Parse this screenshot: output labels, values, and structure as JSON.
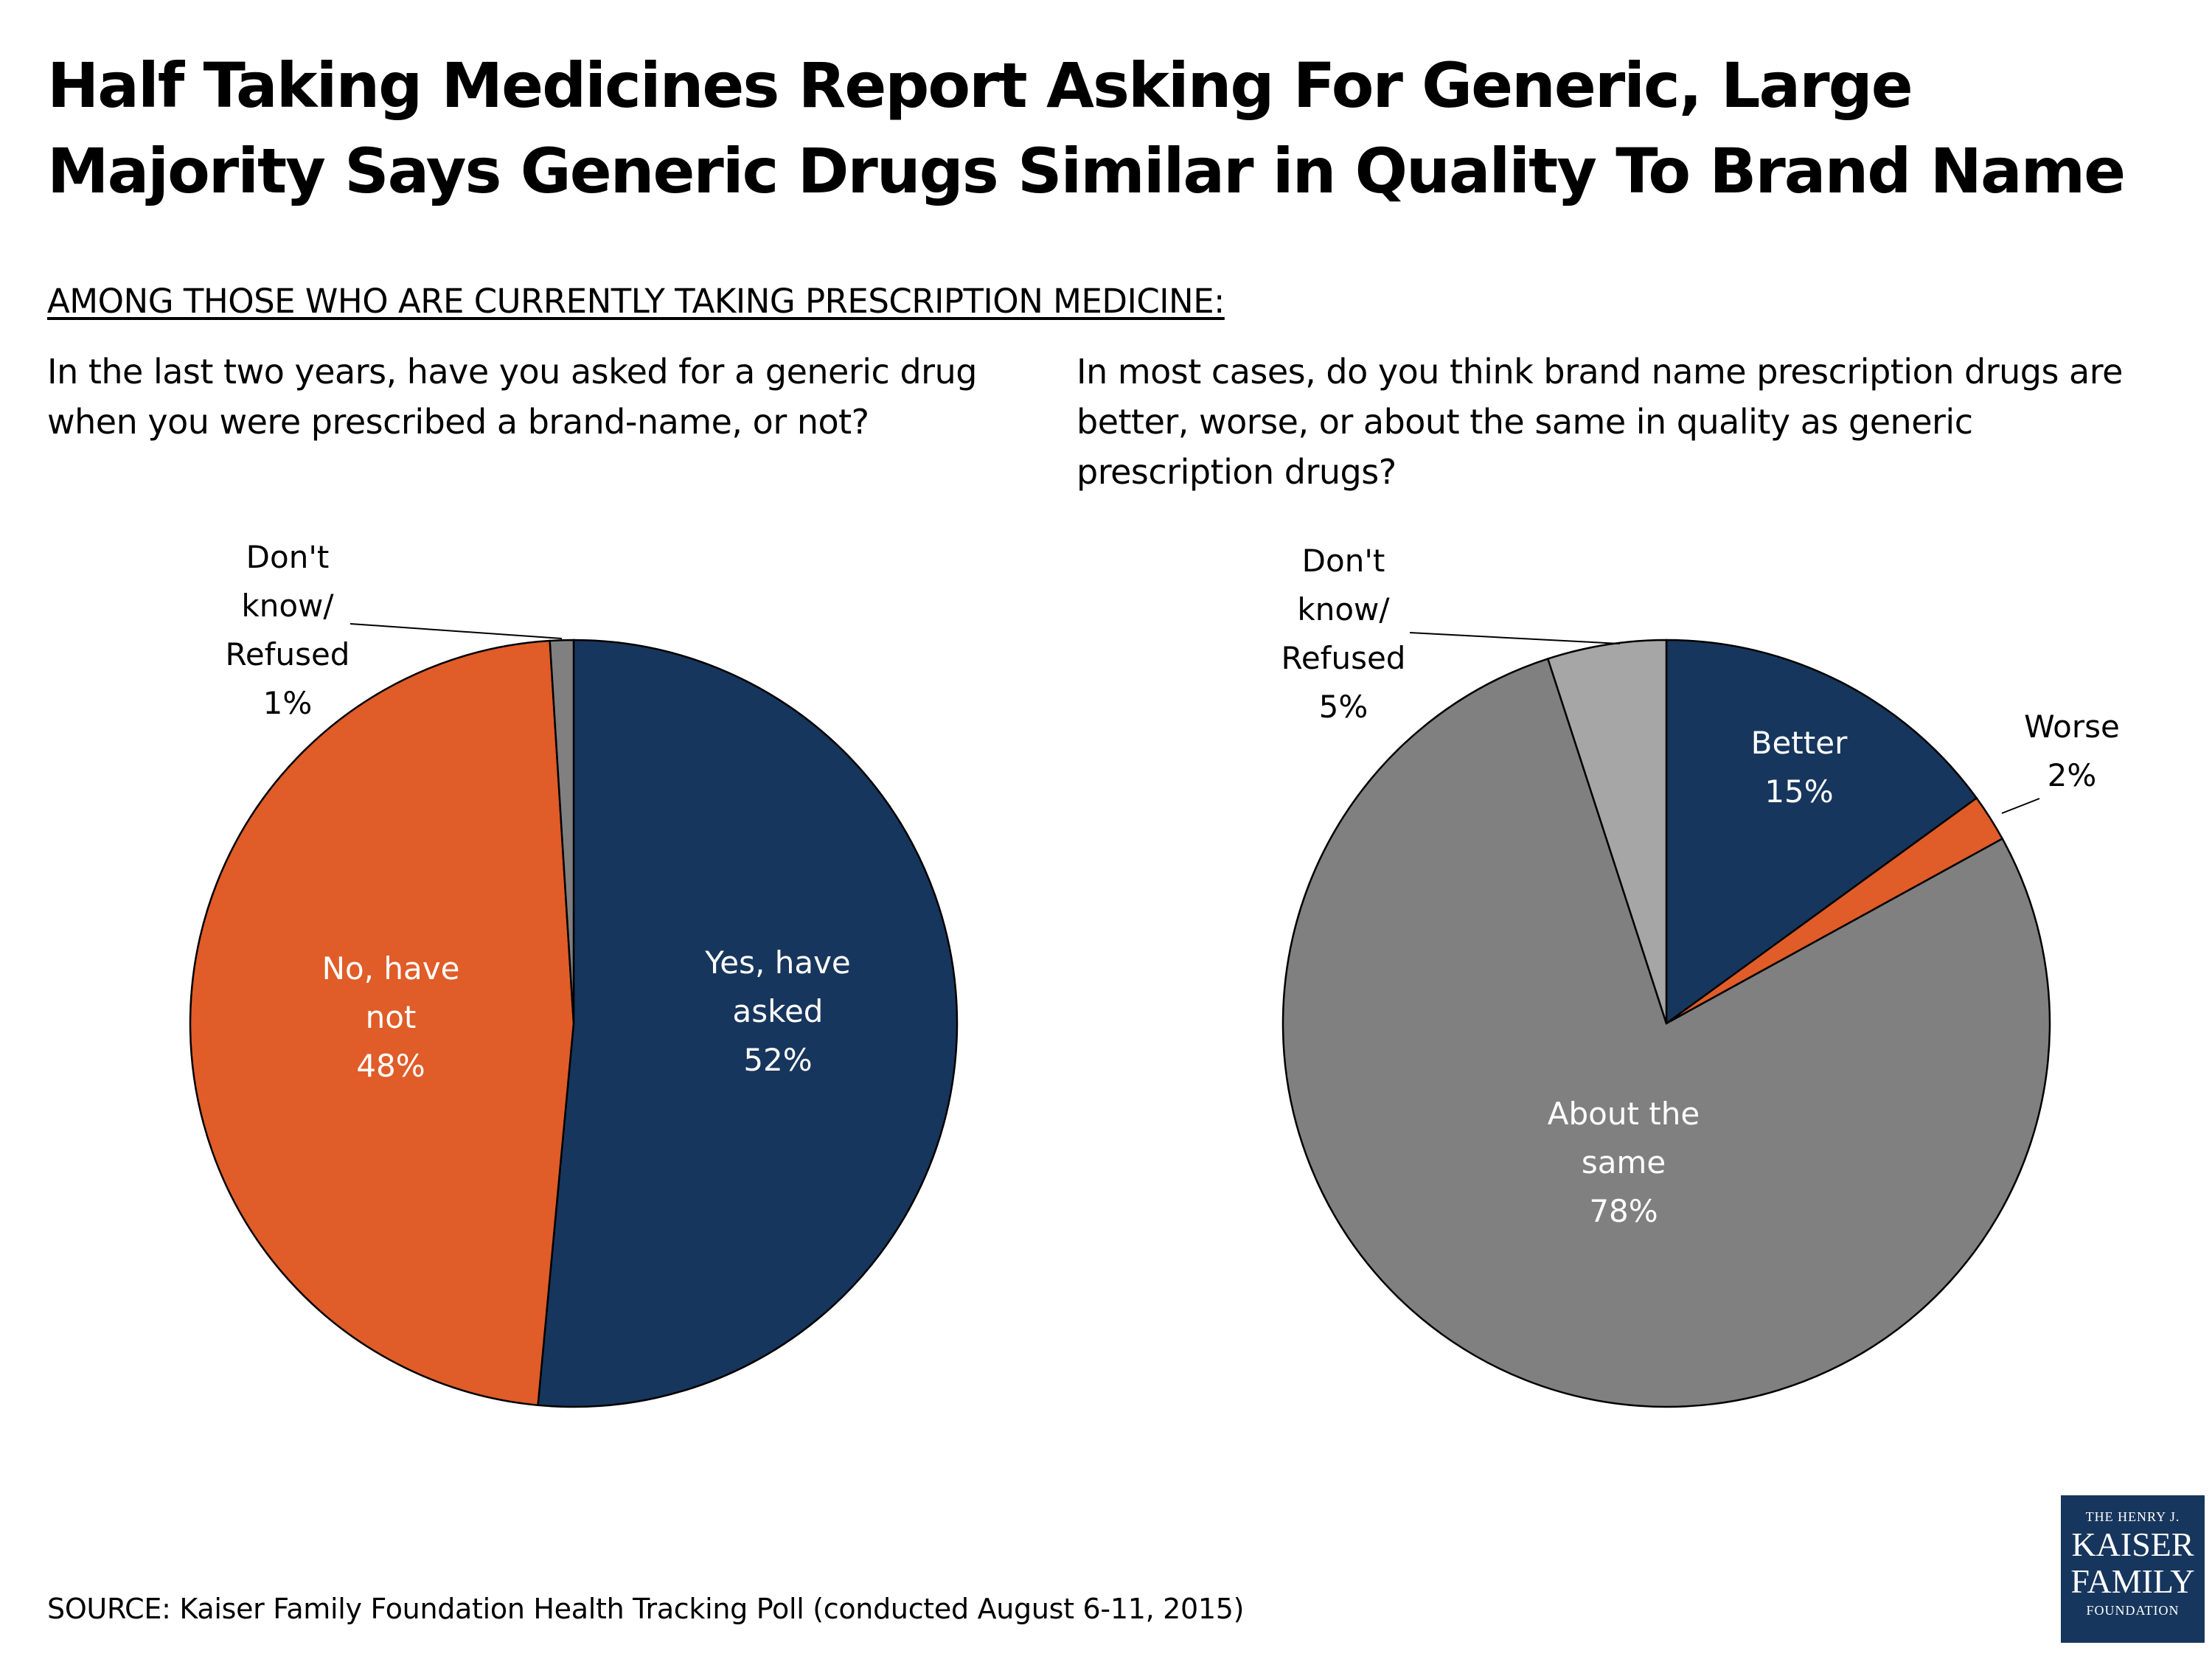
{
  "title": {
    "line1": "Half Taking Medicines Report Asking For Generic, Large",
    "line2": "Majority Says Generic Drugs Similar in Quality To Brand Name"
  },
  "section_label": "AMONG THOSE WHO ARE CURRENTLY TAKING PRESCRIPTION MEDICINE:",
  "questions": {
    "left": {
      "line1": "In the last two years, have you asked for a generic drug",
      "line2": "when you were prescribed a brand-name, or not?"
    },
    "right": {
      "line1": "In most cases, do you think brand name prescription drugs are",
      "line2": "better, worse, or about the same in quality as generic",
      "line3": "prescription drugs?"
    }
  },
  "source": "SOURCE: Kaiser Family Foundation Health Tracking Poll (conducted August 6-11, 2015)",
  "logo": {
    "line1": "THE HENRY J.",
    "line2": "KAISER",
    "line3": "FAMILY",
    "line4": "FOUNDATION"
  },
  "colors": {
    "navy": "#17365d",
    "orange": "#e05c28",
    "dark_gray": "#808080",
    "light_gray": "#a6a6a6",
    "outline": "#000000",
    "label_light": "#ffffff",
    "label_dark": "#000000"
  },
  "chart_data": [
    {
      "type": "pie",
      "start_angle_deg": 0,
      "direction": "clockwise",
      "slices": [
        {
          "label_lines": [
            "Yes, have",
            "asked",
            "52%"
          ],
          "value": 52,
          "color": "#17365d",
          "label_color": "#ffffff",
          "label_placement": "inside"
        },
        {
          "label_lines": [
            "No, have",
            "not",
            "48%"
          ],
          "value": 48,
          "color": "#e05c28",
          "label_color": "#ffffff",
          "label_placement": "inside"
        },
        {
          "label_lines": [
            "Don't",
            "know/",
            "Refused",
            "1%"
          ],
          "value": 1,
          "color": "#808080",
          "label_color": "#000000",
          "label_placement": "outside-leader"
        }
      ]
    },
    {
      "type": "pie",
      "start_angle_deg": 0,
      "direction": "clockwise",
      "slices": [
        {
          "label_lines": [
            "Better",
            "15%"
          ],
          "value": 15,
          "color": "#17365d",
          "label_color": "#ffffff",
          "label_placement": "inside"
        },
        {
          "label_lines": [
            "Worse",
            "2%"
          ],
          "value": 2,
          "color": "#e05c28",
          "label_color": "#000000",
          "label_placement": "outside-leader"
        },
        {
          "label_lines": [
            "About the",
            "same",
            "78%"
          ],
          "value": 78,
          "color": "#808080",
          "label_color": "#ffffff",
          "label_placement": "inside"
        },
        {
          "label_lines": [
            "Don't",
            "know/",
            "Refused",
            "5%"
          ],
          "value": 5,
          "color": "#a6a6a6",
          "label_color": "#000000",
          "label_placement": "outside-leader"
        }
      ]
    }
  ]
}
